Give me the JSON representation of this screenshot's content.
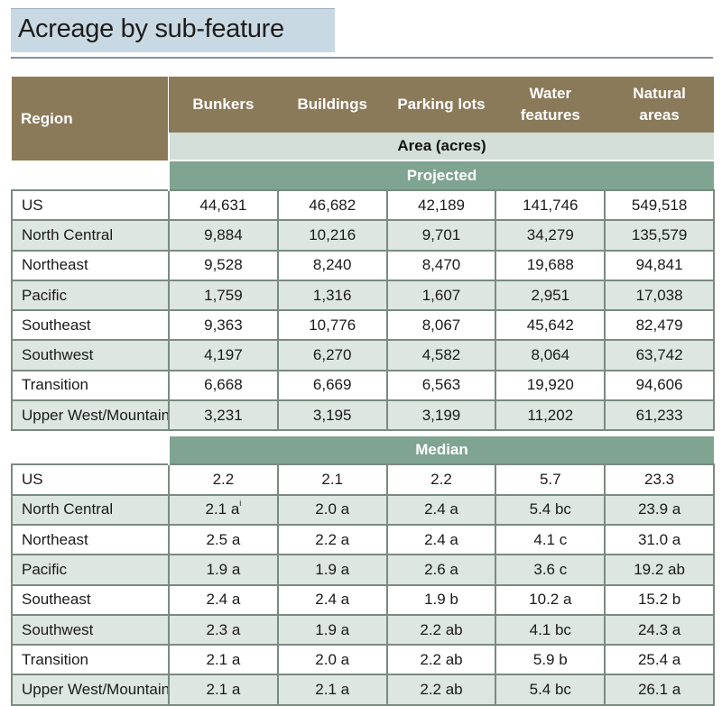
{
  "title": "Acreage by sub-feature",
  "columns": {
    "region": "Region",
    "bunkers": "Bunkers",
    "buildings": "Buildings",
    "parking": "Parking lots",
    "water_line1": "Water",
    "water_line2": "features",
    "natural_line1": "Natural",
    "natural_line2": "areas"
  },
  "area_label": "Area (acres)",
  "projected_label": "Projected",
  "median_label": "Median",
  "projected": [
    {
      "region": "US",
      "values": [
        "44,631",
        "46,682",
        "42,189",
        "141,746",
        "549,518"
      ]
    },
    {
      "region": "North Central",
      "values": [
        "9,884",
        "10,216",
        "9,701",
        "34,279",
        "135,579"
      ]
    },
    {
      "region": "Northeast",
      "values": [
        "9,528",
        "8,240",
        "8,470",
        "19,688",
        "94,841"
      ]
    },
    {
      "region": "Pacific",
      "values": [
        "1,759",
        "1,316",
        "1,607",
        "2,951",
        "17,038"
      ]
    },
    {
      "region": "Southeast",
      "values": [
        "9,363",
        "10,776",
        "8,067",
        "45,642",
        "82,479"
      ]
    },
    {
      "region": "Southwest",
      "values": [
        "4,197",
        "6,270",
        "4,582",
        "8,064",
        "63,742"
      ]
    },
    {
      "region": "Transition",
      "values": [
        "6,668",
        "6,669",
        "6,563",
        "19,920",
        "94,606"
      ]
    },
    {
      "region": "Upper West/Mountain",
      "values": [
        "3,231",
        "3,195",
        "3,199",
        "11,202",
        "61,233"
      ]
    }
  ],
  "median": [
    {
      "region": "US",
      "values": [
        "2.2",
        "2.1",
        "2.2",
        "5.7",
        "23.3"
      ]
    },
    {
      "region": "North Central",
      "values": [
        "2.1 a",
        "2.0 a",
        "2.4 a",
        "5.4 bc",
        "23.9 a"
      ],
      "footnote": "i"
    },
    {
      "region": "Northeast",
      "values": [
        "2.5 a",
        "2.2 a",
        "2.4 a",
        "4.1 c",
        "31.0 a"
      ]
    },
    {
      "region": "Pacific",
      "values": [
        "1.9 a",
        "1.9 a",
        "2.6 a",
        "3.6 c",
        "19.2 ab"
      ]
    },
    {
      "region": "Southeast",
      "values": [
        "2.4 a",
        "2.4 a",
        "1.9 b",
        "10.2 a",
        "15.2 b"
      ]
    },
    {
      "region": "Southwest",
      "values": [
        "2.3 a",
        "1.9 a",
        "2.2 ab",
        "4.1 bc",
        "24.3 a"
      ]
    },
    {
      "region": "Transition",
      "values": [
        "2.1 a",
        "2.0 a",
        "2.2 ab",
        "5.9 b",
        "25.4 a"
      ]
    },
    {
      "region": "Upper West/Mountain",
      "values": [
        "2.1 a",
        "2.1 a",
        "2.2 ab",
        "5.4 bc",
        "26.1 a"
      ]
    }
  ],
  "colors": {
    "header_brown": "#8b7a59",
    "section_green": "#7fa491",
    "area_band": "#d3dfd8",
    "row_shade": "#dde6e1",
    "title_band": "#c9d9e3"
  }
}
